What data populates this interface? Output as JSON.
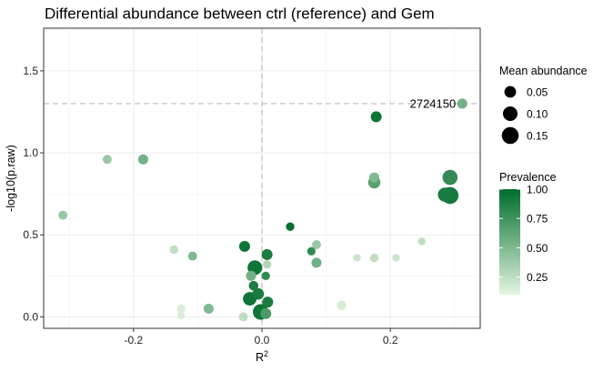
{
  "chart_data": {
    "type": "scatter",
    "title": "Differential abundance between ctrl (reference) and Gem",
    "xlabel": "R",
    "xlabel_superscript": "2",
    "ylabel": "-log10(p.raw)",
    "xlim": [
      -0.34,
      0.34
    ],
    "ylim": [
      -0.07,
      1.76
    ],
    "x_ticks": [
      -0.2,
      0.0,
      0.2
    ],
    "x_tick_labels": [
      "-0.2",
      "0.0",
      "0.2"
    ],
    "y_ticks": [
      0.0,
      0.5,
      1.0,
      1.5
    ],
    "y_tick_labels": [
      "0.0",
      "0.5",
      "1.0",
      "1.5"
    ],
    "grid": true,
    "reference_lines": {
      "vertical_x": 0.0,
      "horizontal_y": 1.3
    },
    "annotation": {
      "label": "2724150",
      "x": 0.312,
      "y": 1.3
    },
    "legend_position": "right",
    "size_legend": {
      "title": "Mean abundance",
      "entries": [
        {
          "label": "0.05",
          "value": 0.05
        },
        {
          "label": "0.10",
          "value": 0.1
        },
        {
          "label": "0.15",
          "value": 0.15
        }
      ]
    },
    "color_legend": {
      "title": "Prevalence",
      "low_color": "#e5f5e0",
      "high_color": "#006d2c",
      "range": [
        0.1,
        1.0
      ],
      "ticks": [
        {
          "label": "1.00",
          "value": 1.0
        },
        {
          "label": "0.75",
          "value": 0.75
        },
        {
          "label": "0.50",
          "value": 0.5
        },
        {
          "label": "0.25",
          "value": 0.25
        }
      ]
    },
    "points": [
      {
        "x": 0.312,
        "y": 1.3,
        "mean": 0.03,
        "prev": 0.55
      },
      {
        "x": 0.178,
        "y": 1.22,
        "mean": 0.04,
        "prev": 0.95
      },
      {
        "x": 0.293,
        "y": 0.85,
        "mean": 0.11,
        "prev": 0.8
      },
      {
        "x": 0.293,
        "y": 0.74,
        "mean": 0.15,
        "prev": 0.92
      },
      {
        "x": 0.285,
        "y": 0.745,
        "mean": 0.09,
        "prev": 0.9
      },
      {
        "x": 0.175,
        "y": 0.82,
        "mean": 0.06,
        "prev": 0.65
      },
      {
        "x": 0.175,
        "y": 0.85,
        "mean": 0.03,
        "prev": 0.5
      },
      {
        "x": -0.241,
        "y": 0.96,
        "mean": 0.02,
        "prev": 0.4
      },
      {
        "x": -0.185,
        "y": 0.96,
        "mean": 0.03,
        "prev": 0.55
      },
      {
        "x": -0.31,
        "y": 0.62,
        "mean": 0.02,
        "prev": 0.4
      },
      {
        "x": 0.044,
        "y": 0.55,
        "mean": 0.015,
        "prev": 0.98
      },
      {
        "x": -0.137,
        "y": 0.41,
        "mean": 0.015,
        "prev": 0.25
      },
      {
        "x": -0.108,
        "y": 0.37,
        "mean": 0.02,
        "prev": 0.5
      },
      {
        "x": -0.027,
        "y": 0.43,
        "mean": 0.04,
        "prev": 0.95
      },
      {
        "x": 0.008,
        "y": 0.38,
        "mean": 0.04,
        "prev": 0.9
      },
      {
        "x": 0.085,
        "y": 0.44,
        "mean": 0.02,
        "prev": 0.4
      },
      {
        "x": 0.077,
        "y": 0.4,
        "mean": 0.015,
        "prev": 0.8
      },
      {
        "x": 0.085,
        "y": 0.33,
        "mean": 0.03,
        "prev": 0.55
      },
      {
        "x": 0.148,
        "y": 0.36,
        "mean": 0.01,
        "prev": 0.2
      },
      {
        "x": 0.175,
        "y": 0.36,
        "mean": 0.015,
        "prev": 0.25
      },
      {
        "x": 0.209,
        "y": 0.36,
        "mean": 0.01,
        "prev": 0.2
      },
      {
        "x": 0.249,
        "y": 0.46,
        "mean": 0.01,
        "prev": 0.25
      },
      {
        "x": -0.011,
        "y": 0.3,
        "mean": 0.1,
        "prev": 0.95
      },
      {
        "x": -0.017,
        "y": 0.25,
        "mean": 0.03,
        "prev": 0.55
      },
      {
        "x": 0.006,
        "y": 0.25,
        "mean": 0.015,
        "prev": 0.8
      },
      {
        "x": 0.008,
        "y": 0.32,
        "mean": 0.015,
        "prev": 0.3
      },
      {
        "x": -0.013,
        "y": 0.19,
        "mean": 0.025,
        "prev": 0.9
      },
      {
        "x": -0.006,
        "y": 0.14,
        "mean": 0.05,
        "prev": 0.9
      },
      {
        "x": -0.019,
        "y": 0.11,
        "mean": 0.08,
        "prev": 0.95
      },
      {
        "x": 0.009,
        "y": 0.09,
        "mean": 0.04,
        "prev": 0.9
      },
      {
        "x": -0.002,
        "y": 0.03,
        "mean": 0.12,
        "prev": 0.95
      },
      {
        "x": 0.006,
        "y": 0.02,
        "mean": 0.04,
        "prev": 0.7
      },
      {
        "x": -0.083,
        "y": 0.05,
        "mean": 0.03,
        "prev": 0.5
      },
      {
        "x": -0.126,
        "y": 0.05,
        "mean": 0.015,
        "prev": 0.15
      },
      {
        "x": -0.126,
        "y": 0.01,
        "mean": 0.01,
        "prev": 0.15
      },
      {
        "x": -0.029,
        "y": 0.0,
        "mean": 0.02,
        "prev": 0.25
      },
      {
        "x": 0.124,
        "y": 0.07,
        "mean": 0.025,
        "prev": 0.15
      }
    ]
  }
}
